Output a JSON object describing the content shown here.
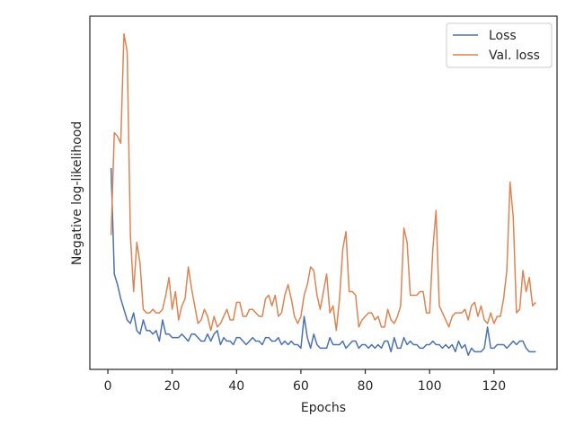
{
  "chart_data": {
    "type": "line",
    "xlabel": "Epochs",
    "ylabel": "Negative log-likelihood",
    "x": [
      1,
      2,
      3,
      4,
      5,
      6,
      7,
      8,
      9,
      10,
      11,
      12,
      13,
      14,
      15,
      16,
      17,
      18,
      19,
      20,
      21,
      22,
      23,
      24,
      25,
      26,
      27,
      28,
      29,
      30,
      31,
      32,
      33,
      34,
      35,
      36,
      37,
      38,
      39,
      40,
      41,
      42,
      43,
      44,
      45,
      46,
      47,
      48,
      49,
      50,
      51,
      52,
      53,
      54,
      55,
      56,
      57,
      58,
      59,
      60,
      61,
      62,
      63,
      64,
      65,
      66,
      67,
      68,
      69,
      70,
      71,
      72,
      73,
      74,
      75,
      76,
      77,
      78,
      79,
      80,
      81,
      82,
      83,
      84,
      85,
      86,
      87,
      88,
      89,
      90,
      91,
      92,
      93,
      94,
      95,
      96,
      97,
      98,
      99,
      100,
      101,
      102,
      103,
      104,
      105,
      106,
      107,
      108,
      109,
      110,
      111,
      112,
      113,
      114,
      115,
      116,
      117,
      118,
      119,
      120,
      121,
      122,
      123,
      124,
      125,
      126,
      127,
      128,
      129,
      130,
      131,
      132,
      133
    ],
    "series": [
      {
        "name": "Loss",
        "color": "#4c72b0",
        "values": [
          5.7,
          2.7,
          2.4,
          2.0,
          1.7,
          1.4,
          1.3,
          1.6,
          1.1,
          1.0,
          1.4,
          1.1,
          1.1,
          1.0,
          1.1,
          0.8,
          1.4,
          1.0,
          1.0,
          0.9,
          0.9,
          0.9,
          1.0,
          0.9,
          0.8,
          1.0,
          1.0,
          0.9,
          0.8,
          0.8,
          1.0,
          0.8,
          1.0,
          1.1,
          0.7,
          0.9,
          0.8,
          0.8,
          0.7,
          0.9,
          0.9,
          0.8,
          0.7,
          0.8,
          0.9,
          0.8,
          0.8,
          0.7,
          0.9,
          0.9,
          0.8,
          0.8,
          0.9,
          0.7,
          0.8,
          0.7,
          0.8,
          0.7,
          0.7,
          0.6,
          1.5,
          0.9,
          0.6,
          1.0,
          0.7,
          0.6,
          0.6,
          0.6,
          0.9,
          0.7,
          0.7,
          0.7,
          0.8,
          0.6,
          0.7,
          0.8,
          0.8,
          0.6,
          0.7,
          0.7,
          0.6,
          0.7,
          0.6,
          0.7,
          0.6,
          0.8,
          0.8,
          0.5,
          0.9,
          0.6,
          0.6,
          0.9,
          0.7,
          0.8,
          0.7,
          0.7,
          0.6,
          0.6,
          0.7,
          0.7,
          0.8,
          0.7,
          0.7,
          0.6,
          0.7,
          0.6,
          0.7,
          0.5,
          0.8,
          0.6,
          0.7,
          0.4,
          0.6,
          0.5,
          0.5,
          0.5,
          0.6,
          1.2,
          0.6,
          0.6,
          0.7,
          0.7,
          0.7,
          0.6,
          0.7,
          0.8,
          0.7,
          0.8,
          0.8,
          0.6,
          0.5,
          0.5,
          0.5
        ]
      },
      {
        "name": "Val. loss",
        "color": "#dd8452",
        "values": [
          3.8,
          6.7,
          6.6,
          6.4,
          9.5,
          9.0,
          3.8,
          2.2,
          3.6,
          3.0,
          1.7,
          1.6,
          1.6,
          1.7,
          1.6,
          1.6,
          1.7,
          2.1,
          2.6,
          1.7,
          2.2,
          1.4,
          1.8,
          2.0,
          2.9,
          2.3,
          1.8,
          1.3,
          1.4,
          1.7,
          1.5,
          1.1,
          1.5,
          1.2,
          1.3,
          1.5,
          1.7,
          1.4,
          1.4,
          1.9,
          1.9,
          1.5,
          1.5,
          1.7,
          1.7,
          1.6,
          1.5,
          1.5,
          2.0,
          2.1,
          1.8,
          2.1,
          1.5,
          1.6,
          2.1,
          2.4,
          2.0,
          1.5,
          1.3,
          1.5,
          2.1,
          2.4,
          2.9,
          2.8,
          2.1,
          1.7,
          2.2,
          2.7,
          1.6,
          1.8,
          1.1,
          2.0,
          3.4,
          3.9,
          2.2,
          2.2,
          2.1,
          1.2,
          1.4,
          1.5,
          1.6,
          1.6,
          1.4,
          1.5,
          1.2,
          1.2,
          1.7,
          1.4,
          1.3,
          1.5,
          1.8,
          4.0,
          3.6,
          2.1,
          2.1,
          2.1,
          2.2,
          2.2,
          1.6,
          1.6,
          3.4,
          4.5,
          1.8,
          1.6,
          1.4,
          1.2,
          1.5,
          1.6,
          1.6,
          1.6,
          1.7,
          1.4,
          1.8,
          1.9,
          1.5,
          1.8,
          1.4,
          1.3,
          1.6,
          1.3,
          1.5,
          1.5,
          2.0,
          2.8,
          5.3,
          4.3,
          1.6,
          1.7,
          2.8,
          2.2,
          2.6,
          1.8,
          1.9
        ]
      }
    ],
    "xlim": [
      -5.6,
      139.6
    ],
    "xticks": [
      0,
      20,
      40,
      60,
      80,
      100,
      120
    ],
    "ylim": [
      0,
      10
    ],
    "legend": "upper right"
  }
}
